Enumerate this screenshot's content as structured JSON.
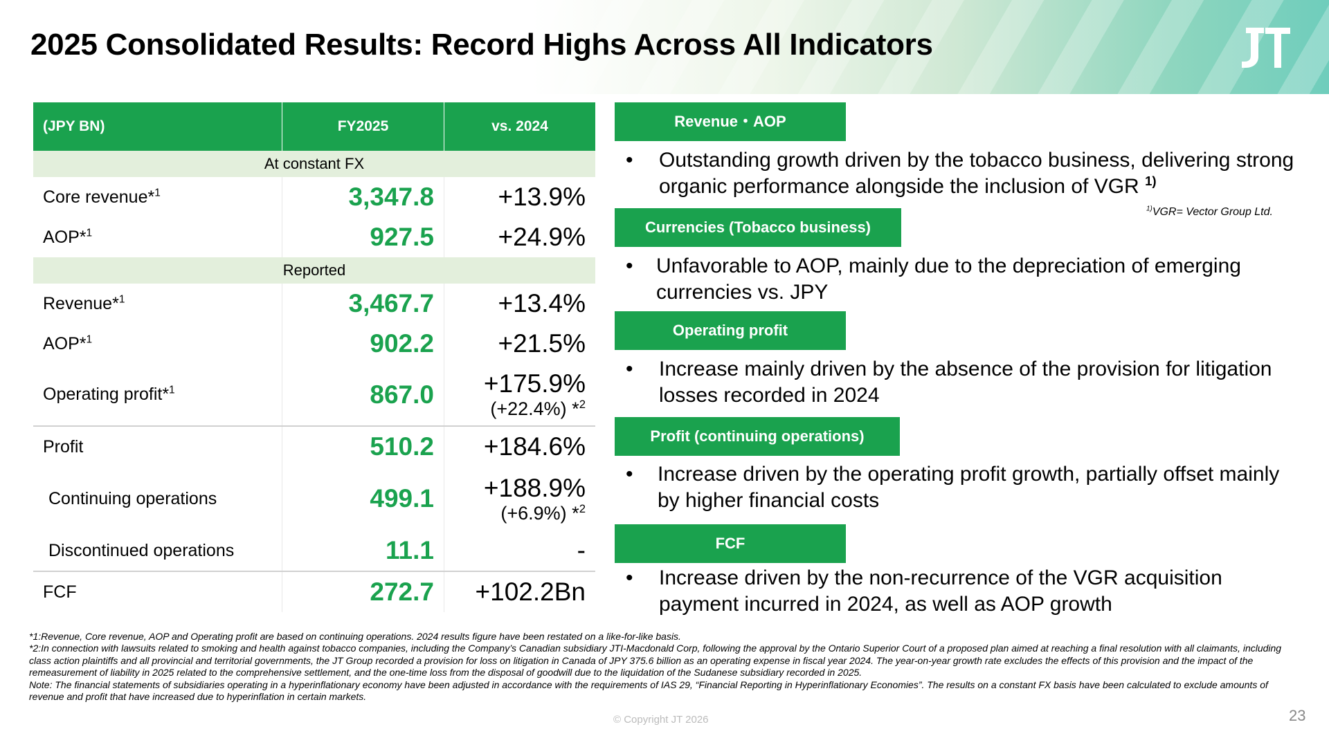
{
  "title": "2025 Consolidated Results: Record Highs Across All Indicators",
  "logo_text": "JT",
  "table": {
    "headers": [
      "(JPY BN)",
      "FY2025",
      "vs. 2024"
    ],
    "sections": {
      "constant_fx": "At constant FX",
      "reported": "Reported"
    },
    "rows": {
      "core_revenue": {
        "label": "Core revenue*",
        "sup": "1",
        "value": "3,347.8",
        "change": "+13.9%"
      },
      "aop_cfx": {
        "label": "AOP*",
        "sup": "1",
        "value": "927.5",
        "change": "+24.9%"
      },
      "revenue": {
        "label": "Revenue*",
        "sup": "1",
        "value": "3,467.7",
        "change": "+13.4%"
      },
      "aop_rep": {
        "label": "AOP*",
        "sup": "1",
        "value": "902.2",
        "change": "+21.5%"
      },
      "operating_profit": {
        "label": "Operating profit*",
        "sup": "1",
        "value": "867.0",
        "change": "+175.9%",
        "sub": "(+22.4%) *",
        "sub_sup": "2"
      },
      "profit": {
        "label": "Profit",
        "value": "510.2",
        "change": "+184.6%"
      },
      "continuing": {
        "label": "Continuing operations",
        "value": "499.1",
        "change": "+188.9%",
        "sub": "(+6.9%) *",
        "sub_sup": "2"
      },
      "discontinued": {
        "label": "Discontinued operations",
        "value": "11.1",
        "change": "-"
      },
      "fcf": {
        "label": "FCF",
        "value": "272.7",
        "change": "+102.2Bn"
      }
    }
  },
  "commentary": {
    "revenue_aop": {
      "tag": "Revenue・AOP",
      "text": "Outstanding growth driven by the tobacco business, delivering strong organic performance alongside the inclusion of VGR",
      "ref": "1)"
    },
    "vgr_note": {
      "sup": "1)",
      "text": "VGR= Vector Group Ltd."
    },
    "currencies": {
      "tag": "Currencies (Tobacco business)",
      "text": "Unfavorable to AOP, mainly due to the depreciation of emerging currencies vs. JPY"
    },
    "operating_profit": {
      "tag": "Operating profit",
      "text": "Increase mainly driven by the absence of the provision for litigation losses recorded in 2024"
    },
    "profit": {
      "tag": "Profit (continuing operations)",
      "text": "Increase driven by the operating profit growth, partially offset mainly by higher financial costs"
    },
    "fcf": {
      "tag": "FCF",
      "text": "Increase driven by the non-recurrence of the VGR acquisition payment incurred in 2024, as well as AOP growth"
    },
    "bullet": "•"
  },
  "footnotes": [
    "*1:Revenue, Core revenue, AOP and Operating profit are based on continuing operations. 2024 results figure have been restated on a like-for-like basis.",
    "*2:In connection with lawsuits related to smoking and health against tobacco companies, including the Company’s Canadian subsidiary JTI-Macdonald Corp, following the approval by the Ontario Superior Court of a proposed plan aimed at reaching a final resolution with all claimants, including class action plaintiffs and all provincial and territorial governments, the JT Group recorded a provision for loss on litigation in Canada of JPY 375.6 billion as an operating expense in fiscal year 2024. The year-on-year growth rate excludes the effects of this provision and the impact of the remeasurement of liability in 2025 related to the comprehensive settlement, and the one-time loss from the disposal of goodwill due to the liquidation of the Sudanese subsidiary recorded in 2025.",
    "Note: The financial statements of subsidiaries operating in a hyperinflationary economy have been adjusted in accordance with the requirements of IAS 29, “Financial Reporting in Hyperinflationary Economies”. The results on a constant FX basis have been calculated to exclude amounts of revenue and profit that have increased due to hyperinflation in certain markets."
  ],
  "copyright": "© Copyright JT 2026",
  "page_number": "23",
  "colors": {
    "accent_green": "#1aa24e",
    "section_bg": "#e3efdc",
    "header_teal": "#6fcdbc"
  }
}
